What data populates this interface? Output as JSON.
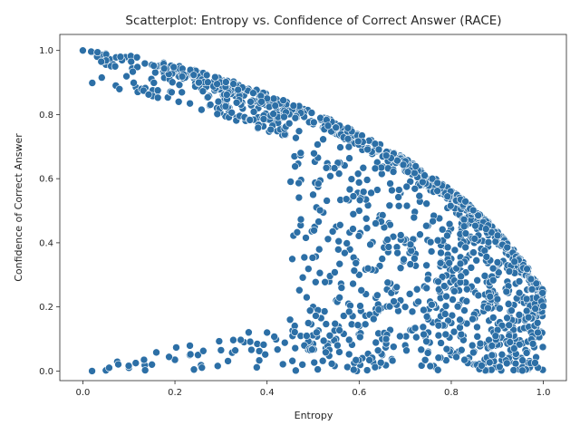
{
  "chart_data": {
    "type": "scatter",
    "title": "Scatterplot: Entropy vs. Confidence of Correct Answer (RACE)",
    "xlabel": "Entropy",
    "ylabel": "Confidence of Correct Answer",
    "xlim": [
      -0.05,
      1.05
    ],
    "ylim": [
      -0.03,
      1.05
    ],
    "xticks": [
      "0.0",
      "0.2",
      "0.4",
      "0.6",
      "0.8",
      "1.0"
    ],
    "yticks": [
      "0.0",
      "0.2",
      "0.4",
      "0.6",
      "0.8",
      "1.0"
    ],
    "grid": false,
    "legend": "none",
    "marker_color": "#2c6fa6",
    "marker_edge": "#ffffff",
    "sample_points": [
      [
        0.0,
        1.0
      ],
      [
        0.02,
        0.995
      ],
      [
        0.05,
        0.99
      ],
      [
        0.1,
        0.975
      ],
      [
        0.15,
        0.955
      ],
      [
        0.2,
        0.935
      ],
      [
        0.25,
        0.91
      ],
      [
        0.3,
        0.885
      ],
      [
        0.35,
        0.86
      ],
      [
        0.4,
        0.83
      ],
      [
        0.45,
        0.8
      ],
      [
        0.5,
        0.77
      ],
      [
        0.55,
        0.74
      ],
      [
        0.6,
        0.705
      ],
      [
        0.65,
        0.67
      ],
      [
        0.7,
        0.63
      ],
      [
        0.75,
        0.59
      ],
      [
        0.8,
        0.54
      ],
      [
        0.85,
        0.48
      ],
      [
        0.9,
        0.42
      ],
      [
        0.95,
        0.35
      ],
      [
        1.0,
        0.25
      ],
      [
        0.02,
        0.0
      ],
      [
        0.05,
        0.002
      ],
      [
        0.1,
        0.01
      ],
      [
        0.15,
        0.02
      ],
      [
        0.2,
        0.035
      ],
      [
        0.25,
        0.05
      ],
      [
        0.3,
        0.065
      ],
      [
        0.35,
        0.09
      ],
      [
        0.4,
        0.12
      ],
      [
        0.45,
        0.16
      ],
      [
        0.5,
        0.2
      ],
      [
        0.55,
        0.22
      ],
      [
        0.6,
        0.14
      ],
      [
        0.65,
        0.1
      ],
      [
        0.7,
        0.08
      ],
      [
        0.75,
        0.06
      ],
      [
        0.8,
        0.05
      ],
      [
        0.85,
        0.06
      ],
      [
        0.9,
        0.08
      ],
      [
        0.95,
        0.13
      ],
      [
        1.0,
        0.2
      ],
      [
        0.5,
        0.55
      ],
      [
        0.55,
        0.45
      ],
      [
        0.6,
        0.5
      ],
      [
        0.65,
        0.35
      ],
      [
        0.7,
        0.4
      ],
      [
        0.75,
        0.3
      ],
      [
        0.8,
        0.35
      ],
      [
        0.85,
        0.25
      ],
      [
        0.9,
        0.3
      ],
      [
        0.95,
        0.22
      ],
      [
        0.6,
        0.3
      ],
      [
        0.7,
        0.2
      ],
      [
        0.8,
        0.15
      ],
      [
        0.85,
        0.4
      ],
      [
        0.9,
        0.2
      ],
      [
        0.55,
        0.1
      ],
      [
        0.65,
        0.05
      ],
      [
        0.75,
        0.12
      ]
    ]
  }
}
